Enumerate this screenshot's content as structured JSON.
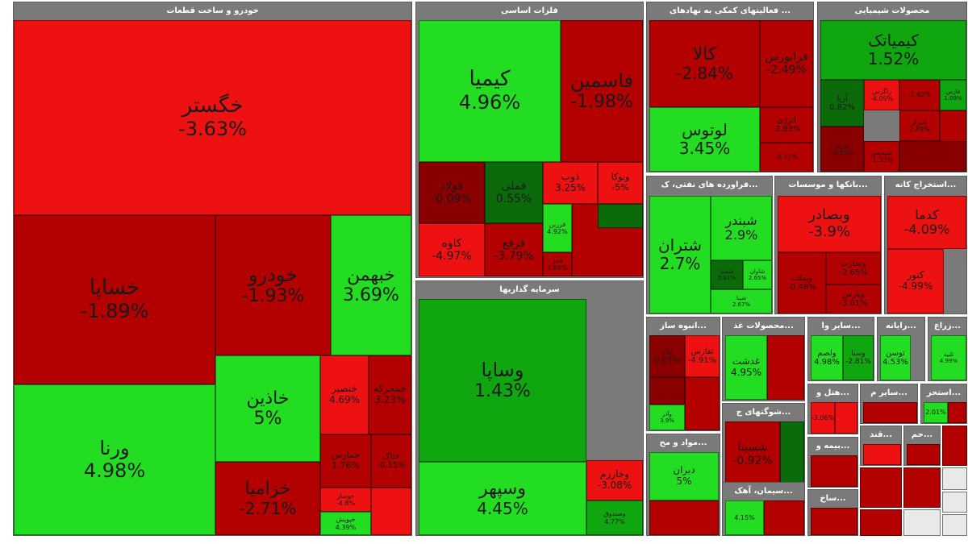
{
  "colors": {
    "strong_up": "#22dd22",
    "mid_up": "#0fa60f",
    "dark_up": "#0b6b0b",
    "strong_down": "#ee1111",
    "mid_down": "#b30000",
    "dark_down": "#8a0000",
    "header": "#7a7a7a",
    "blank": "#e9e9e9"
  },
  "sectors": [
    {
      "title": "خودرو و ساخت قطعات",
      "tiles": [
        {
          "symbol": "خگستر",
          "change": "-3.63%"
        },
        {
          "symbol": "خساپا",
          "change": "-1.89%"
        },
        {
          "symbol": "خودرو",
          "change": "-1.93%"
        },
        {
          "symbol": "خبهمن",
          "change": "3.69%"
        },
        {
          "symbol": "ورنا",
          "change": "4.98%"
        },
        {
          "symbol": "خاذین",
          "change": "5%"
        },
        {
          "symbol": "خنصیر",
          "change": "4.69%"
        },
        {
          "symbol": "خمحرکه",
          "change": "3.23%"
        },
        {
          "symbol": "خزامیا",
          "change": "-2.71%"
        },
        {
          "symbol": "خمارس",
          "change": "1.76%"
        },
        {
          "symbol": "ختاک",
          "change": "-0.15%"
        },
        {
          "symbol": "خوساز",
          "change": "-4.8%"
        },
        {
          "symbol": "خپویش",
          "change": "4.39%"
        }
      ]
    },
    {
      "title": "فلزات اساسی",
      "tiles": [
        {
          "symbol": "کیمیا",
          "change": "4.96%"
        },
        {
          "symbol": "فاسمین",
          "change": "-1.98%"
        },
        {
          "symbol": "فولاد",
          "change": "-0.09%"
        },
        {
          "symbol": "فملی",
          "change": "0.55%"
        },
        {
          "symbol": "ذوب",
          "change": "3.25%"
        },
        {
          "symbol": "ونوکا",
          "change": "-5%"
        },
        {
          "symbol": "کاوه",
          "change": "-4.97%"
        },
        {
          "symbol": "فرفع",
          "change": "-3.79%"
        },
        {
          "symbol": "فزرین",
          "change": "4.92%"
        },
        {
          "symbol": "فجر",
          "change": "1.86%"
        }
      ]
    },
    {
      "title": "سرمایه گذاریها",
      "tiles": [
        {
          "symbol": "وساپا",
          "change": "1.43%"
        },
        {
          "symbol": "وسپهر",
          "change": "4.45%"
        },
        {
          "symbol": "وخارزم",
          "change": "-3.08%"
        },
        {
          "symbol": "وصندوق",
          "change": "4.77%"
        }
      ]
    },
    {
      "title": "... فعالیتهای کمکی به نهادهای",
      "tiles": [
        {
          "symbol": "کالا",
          "change": "-2.84%"
        },
        {
          "symbol": "فرابورس",
          "change": "-2.49%"
        },
        {
          "symbol": "لوتوس",
          "change": "3.45%"
        },
        {
          "symbol": "اترژی",
          "change": "-2.83%"
        },
        {
          "symbol": "",
          "change": "-0.11%"
        }
      ]
    },
    {
      "title": "محصولات شیمیایی",
      "tiles": [
        {
          "symbol": "کیمیاتک",
          "change": "1.52%"
        },
        {
          "symbol": "آریا",
          "change": "0.82%"
        },
        {
          "symbol": "زاگرس",
          "change": "-4.09%"
        },
        {
          "symbol": "",
          "change": "-1.62%"
        },
        {
          "symbol": "فارس",
          "change": "1.09%"
        },
        {
          "symbol": "شیراز",
          "change": "2.49%"
        },
        {
          "symbol": "نوری",
          "change": "-0.55%"
        },
        {
          "symbol": "شپدیس",
          "change": "-1.33%"
        }
      ]
    },
    {
      "title": "...فراورده های نفتی، ک",
      "tiles": [
        {
          "symbol": "شتران",
          "change": "2.7%"
        },
        {
          "symbol": "شبندر",
          "change": "2.9%"
        },
        {
          "symbol": "شسپا",
          "change": "0.81%"
        },
        {
          "symbol": "شاوان",
          "change": "2.65%"
        },
        {
          "symbol": "شپنا",
          "change": "2.67%"
        }
      ]
    },
    {
      "title": "...بانکها و موسسات",
      "tiles": [
        {
          "symbol": "وبصادر",
          "change": "-3.9%"
        },
        {
          "symbol": "وبملت",
          "change": "-0.48%"
        },
        {
          "symbol": "وتجارت",
          "change": "-2.65%"
        },
        {
          "symbol": "وپارس",
          "change": "-3.01%"
        }
      ]
    },
    {
      "title": "...استخراج کانه",
      "tiles": [
        {
          "symbol": "کدما",
          "change": "-4.09%"
        },
        {
          "symbol": "کنور",
          "change": "-4.99%"
        }
      ]
    },
    {
      "title": "...انبوه ساز",
      "tiles": [
        {
          "symbol": "ثباد",
          "change": "0.07%"
        },
        {
          "symbol": "ثفارس",
          "change": "-4.91%"
        },
        {
          "symbol": "وآذر",
          "change": "3.9%"
        }
      ]
    },
    {
      "title": "...محصولات غذ",
      "tiles": [
        {
          "symbol": "غدشت",
          "change": "4.95%"
        }
      ]
    },
    {
      "title": "...سایر وا",
      "tiles": [
        {
          "symbol": "ولصم",
          "change": "4.98%"
        },
        {
          "symbol": "وسنا",
          "change": "-2.81%"
        }
      ]
    },
    {
      "title": "...رایانه",
      "tiles": [
        {
          "symbol": "توسن",
          "change": "4.53%"
        }
      ]
    },
    {
      "title": "...زراع",
      "tiles": [
        {
          "symbol": "ثلبیه",
          "change": "4.99%"
        }
      ]
    },
    {
      "title": "...شوگتهای ج",
      "tiles": [
        {
          "symbol": "شسینا",
          "change": "-0.92%"
        }
      ]
    },
    {
      "title": "...هتل و",
      "tiles": [
        {
          "symbol": "",
          "change": "-3.06%"
        }
      ]
    },
    {
      "title": "...سایر م",
      "tiles": []
    },
    {
      "title": "...استخر",
      "tiles": [
        {
          "symbol": "",
          "change": "2.01%"
        }
      ]
    },
    {
      "title": "...مواد و مح",
      "tiles": [
        {
          "symbol": "دبران",
          "change": "5%"
        }
      ]
    },
    {
      "title": "...سیمان، آهک",
      "tiles": [
        {
          "symbol": "",
          "change": "4.15%"
        }
      ]
    },
    {
      "title": "...بیمه و",
      "tiles": []
    },
    {
      "title": "...ساخ",
      "tiles": []
    },
    {
      "title": "...قند",
      "tiles": []
    },
    {
      "title": "...حم",
      "tiles": []
    }
  ]
}
